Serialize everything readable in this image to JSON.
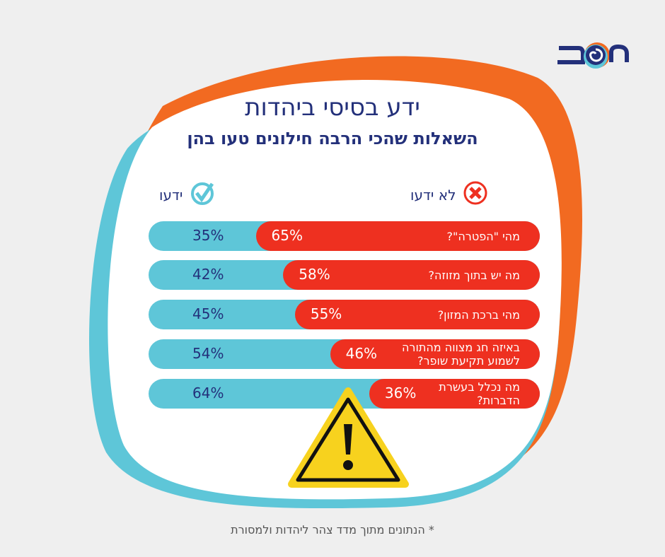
{
  "logo": {
    "text": "משב"
  },
  "title": "ידע בסיסי ביהדות",
  "subtitle": "השאלות שהכי הרבה חילונים טעו בהן",
  "footnote": "* הנתונים מתוך מדד צהר ליהדות ולמסורת",
  "colors": {
    "known": "#5ec6d8",
    "unknown": "#ee3020",
    "text": "#23307a",
    "orange": "#f26a21",
    "warning": "#f7d21e"
  },
  "chart_data": {
    "type": "bar",
    "stacked": true,
    "orientation": "horizontal",
    "legend": [
      {
        "label": "ידעו",
        "icon": "check-icon",
        "color": "#5ec6d8"
      },
      {
        "label": "לא ידעו",
        "icon": "x-icon",
        "color": "#ee3020"
      }
    ],
    "categories": [
      "מהי \"הפטרה\"?",
      "מה יש בתוך מזוזה?",
      "מהי ברכת המזון?",
      "באיזה חג מצווה מהתורה לשמוע תקיעת שופר?",
      "מה נכלל בעשרת הדברות?"
    ],
    "series": [
      {
        "name": "ידעו",
        "values": [
          35,
          42,
          45,
          54,
          64
        ],
        "labels": [
          "35%",
          "42%",
          "45%",
          "54%",
          "64%"
        ]
      },
      {
        "name": "לא ידעו",
        "values": [
          65,
          58,
          55,
          46,
          36
        ],
        "labels": [
          "65%",
          "58%",
          "55%",
          "46%",
          "36%"
        ]
      }
    ]
  }
}
